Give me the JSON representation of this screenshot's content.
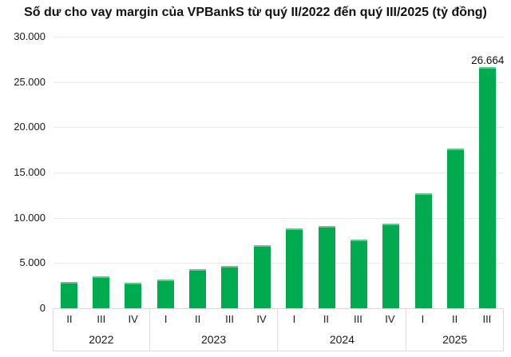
{
  "title": "Số dư cho vay margin của VPBankS từ quý II/2022 đến quý III/2025 (tỷ đồng)",
  "colors": {
    "bar": "#00ab50",
    "bar_top_edge": "#5cc98e",
    "gridline": "#e9e9e9",
    "axis_border": "#dcdcdc",
    "text": "#111111"
  },
  "y_axis": {
    "tick_labels": [
      "30.000",
      "25.000",
      "20.000",
      "15.000",
      "10.000",
      "5.000",
      "0"
    ],
    "tick_values": [
      30000,
      25000,
      20000,
      15000,
      10000,
      5000,
      0
    ],
    "max": 30000,
    "min": 0,
    "step": 5000
  },
  "chart_data": {
    "type": "bar",
    "title": "Số dư cho vay margin của VPBankS từ quý II/2022 đến quý III/2025 (tỷ đồng)",
    "xlabel": "",
    "ylabel": "tỷ đồng",
    "ylim": [
      0,
      30000
    ],
    "grid": true,
    "categories": [
      "II/2022",
      "III/2022",
      "IV/2022",
      "I/2023",
      "II/2023",
      "III/2023",
      "IV/2023",
      "I/2024",
      "II/2024",
      "III/2024",
      "IV/2024",
      "I/2025",
      "II/2025",
      "III/2025"
    ],
    "values": [
      2900,
      3500,
      2850,
      3150,
      4300,
      4650,
      7000,
      8800,
      9050,
      7550,
      9350,
      12750,
      17650,
      26664
    ],
    "groups": [
      {
        "year": "2022",
        "quarters": [
          "II",
          "III",
          "IV"
        ],
        "values": [
          2900,
          3500,
          2850
        ]
      },
      {
        "year": "2023",
        "quarters": [
          "I",
          "II",
          "III",
          "IV"
        ],
        "values": [
          3150,
          4300,
          4650,
          7000
        ]
      },
      {
        "year": "2024",
        "quarters": [
          "I",
          "II",
          "III",
          "IV"
        ],
        "values": [
          8800,
          9050,
          7550,
          9350
        ]
      },
      {
        "year": "2025",
        "quarters": [
          "I",
          "II",
          "III"
        ],
        "values": [
          12750,
          17650,
          26664
        ]
      }
    ],
    "annotations": [
      {
        "category": "III/2025",
        "text": "26.664"
      }
    ],
    "legend": null
  }
}
